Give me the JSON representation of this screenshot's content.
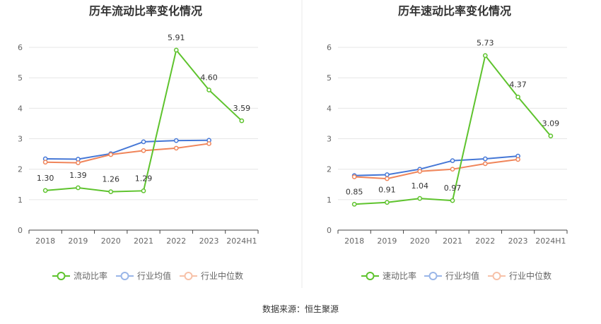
{
  "source_label": "数据来源：恒生聚源",
  "colors": {
    "company": "#5ec32d",
    "avg": "#4577d6",
    "median": "#f0855a",
    "avg_legend": "#9ab6e8",
    "median_legend": "#f7c1a8",
    "axis": "#444444",
    "grid": "#e6e6e6",
    "divider": "#e8e8e8"
  },
  "chart_data": [
    {
      "type": "line",
      "title": "历年流动比率变化情况",
      "categories": [
        "2018",
        "2019",
        "2020",
        "2021",
        "2022",
        "2023",
        "2024H1"
      ],
      "yticks": [
        "0",
        "1",
        "2",
        "3",
        "4",
        "5",
        "6"
      ],
      "ylim": [
        0,
        6.5
      ],
      "grid": true,
      "legend_position": "bottom",
      "series": [
        {
          "name": "流动比率",
          "values": [
            1.3,
            1.39,
            1.26,
            1.29,
            5.91,
            4.6,
            3.59
          ],
          "labels": [
            "1.30",
            "1.39",
            "1.26",
            "1.29",
            "5.91",
            "4.60",
            "3.59"
          ]
        },
        {
          "name": "行业均值",
          "values": [
            2.34,
            2.33,
            2.51,
            2.9,
            2.94,
            2.95,
            null
          ]
        },
        {
          "name": "行业中位数",
          "values": [
            2.23,
            2.21,
            2.48,
            2.61,
            2.69,
            2.84,
            null
          ]
        }
      ]
    },
    {
      "type": "line",
      "title": "历年速动比率变化情况",
      "categories": [
        "2018",
        "2019",
        "2020",
        "2021",
        "2022",
        "2023",
        "2024H1"
      ],
      "yticks": [
        "0",
        "1",
        "2",
        "3",
        "4",
        "5",
        "6"
      ],
      "ylim": [
        0,
        6.5
      ],
      "grid": true,
      "legend_position": "bottom",
      "series": [
        {
          "name": "速动比率",
          "values": [
            0.85,
            0.91,
            1.04,
            0.97,
            5.73,
            4.37,
            3.09
          ],
          "labels": [
            "0.85",
            "0.91",
            "1.04",
            "0.97",
            "5.73",
            "4.37",
            "3.09"
          ]
        },
        {
          "name": "行业均值",
          "values": [
            1.79,
            1.82,
            2.0,
            2.28,
            2.34,
            2.43,
            null
          ]
        },
        {
          "name": "行业中位数",
          "values": [
            1.75,
            1.69,
            1.93,
            2.0,
            2.18,
            2.32,
            null
          ]
        }
      ]
    }
  ]
}
